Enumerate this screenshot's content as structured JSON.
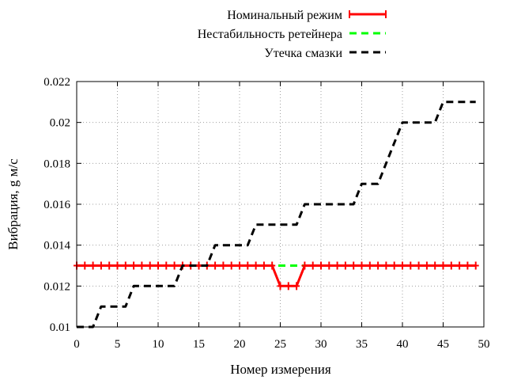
{
  "chart_data": {
    "type": "line",
    "xlabel": "Номер измерения",
    "ylabel": "Вибрация, g м/с",
    "xlim": [
      0,
      50
    ],
    "ylim": [
      0.01,
      0.022
    ],
    "x_ticks": [
      "0",
      "5",
      "10",
      "15",
      "20",
      "25",
      "30",
      "35",
      "40",
      "45",
      "50"
    ],
    "y_ticks": [
      "0.01",
      "0.012",
      "0.014",
      "0.016",
      "0.018",
      "0.02",
      "0.022"
    ],
    "grid": true,
    "legend_position": "top-center",
    "series": [
      {
        "name": "Номинальный режим",
        "color": "#ff0000",
        "style": "solid-with-cross-markers",
        "x": [
          0,
          1,
          2,
          3,
          4,
          5,
          6,
          7,
          8,
          9,
          10,
          11,
          12,
          13,
          14,
          15,
          16,
          17,
          18,
          19,
          20,
          21,
          22,
          23,
          24,
          25,
          26,
          27,
          28,
          29,
          30,
          31,
          32,
          33,
          34,
          35,
          36,
          37,
          38,
          39,
          40,
          41,
          42,
          43,
          44,
          45,
          46,
          47,
          48,
          49
        ],
        "y": [
          0.013,
          0.013,
          0.013,
          0.013,
          0.013,
          0.013,
          0.013,
          0.013,
          0.013,
          0.013,
          0.013,
          0.013,
          0.013,
          0.013,
          0.013,
          0.013,
          0.013,
          0.013,
          0.013,
          0.013,
          0.013,
          0.013,
          0.013,
          0.013,
          0.013,
          0.012,
          0.012,
          0.012,
          0.013,
          0.013,
          0.013,
          0.013,
          0.013,
          0.013,
          0.013,
          0.013,
          0.013,
          0.013,
          0.013,
          0.013,
          0.013,
          0.013,
          0.013,
          0.013,
          0.013,
          0.013,
          0.013,
          0.013,
          0.013,
          0.013
        ]
      },
      {
        "name": "Нестабильность ретейнера",
        "color": "#00ff00",
        "style": "dashed",
        "x": [
          0,
          49
        ],
        "y": [
          0.013,
          0.013
        ]
      },
      {
        "name": "Утечка смазки",
        "color": "#000000",
        "style": "dashed",
        "x": [
          0,
          1,
          2,
          3,
          4,
          5,
          6,
          7,
          8,
          9,
          10,
          11,
          12,
          13,
          14,
          15,
          16,
          17,
          18,
          19,
          20,
          21,
          22,
          23,
          24,
          25,
          26,
          27,
          28,
          29,
          30,
          31,
          32,
          33,
          34,
          35,
          36,
          37,
          38,
          39,
          40,
          41,
          42,
          43,
          44,
          45,
          46,
          47,
          48,
          49
        ],
        "y": [
          0.01,
          0.01,
          0.01,
          0.011,
          0.011,
          0.011,
          0.011,
          0.012,
          0.012,
          0.012,
          0.012,
          0.012,
          0.012,
          0.013,
          0.013,
          0.013,
          0.013,
          0.014,
          0.014,
          0.014,
          0.014,
          0.014,
          0.015,
          0.015,
          0.015,
          0.015,
          0.015,
          0.015,
          0.016,
          0.016,
          0.016,
          0.016,
          0.016,
          0.016,
          0.016,
          0.017,
          0.017,
          0.017,
          0.018,
          0.019,
          0.02,
          0.02,
          0.02,
          0.02,
          0.02,
          0.021,
          0.021,
          0.021,
          0.021,
          0.021
        ]
      }
    ]
  }
}
